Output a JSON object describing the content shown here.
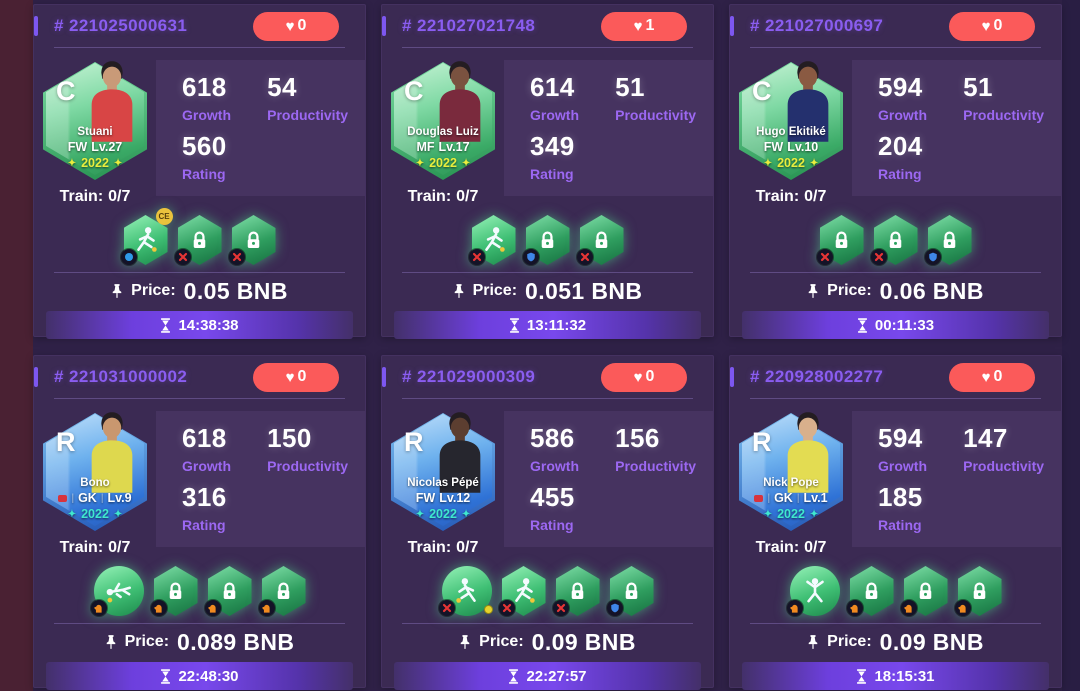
{
  "theme": {
    "accent_purple": "#8a5df0",
    "heart_red": "#fb5a5a",
    "timer_purple": "#6d3fdd",
    "skill_green": "#3fbf74",
    "common_green": "#3aaa66",
    "rare_blue": "#2f72d6"
  },
  "labels": {
    "train": "Train:",
    "growth": "Growth",
    "productivity": "Productivity",
    "rating": "Rating",
    "price": "Price:"
  },
  "cards": [
    {
      "id": "# 221025000631",
      "likes": "0",
      "player": {
        "grade": "C",
        "tier": "C",
        "name": "Stuani",
        "position": "FW",
        "level": "Lv.27",
        "year": "2022",
        "mark": false,
        "colors": {
          "jersey": "#d84545",
          "skin": "#c99a78"
        }
      },
      "growth": "618",
      "productivity": "54",
      "rating": "560",
      "train": "0/7",
      "price": "0.05 BNB",
      "timer": "14:38:38",
      "skills": [
        {
          "shape": "hex",
          "locked": false,
          "art": "kick",
          "badge": "dot",
          "top": "CE"
        },
        {
          "shape": "hex",
          "locked": true,
          "badge": "x"
        },
        {
          "shape": "hex",
          "locked": true,
          "badge": "x"
        }
      ]
    },
    {
      "id": "# 221027021748",
      "likes": "1",
      "player": {
        "grade": "C",
        "tier": "C",
        "name": "Douglas Luiz",
        "position": "MF",
        "level": "Lv.17",
        "year": "2022",
        "mark": false,
        "colors": {
          "jersey": "#7a2a3d",
          "skin": "#7a5240"
        }
      },
      "growth": "614",
      "productivity": "51",
      "rating": "349",
      "train": "0/7",
      "price": "0.051 BNB",
      "timer": "13:11:32",
      "skills": [
        {
          "shape": "hex",
          "locked": false,
          "art": "kick",
          "badge": "x"
        },
        {
          "shape": "hex",
          "locked": true,
          "badge": "shield"
        },
        {
          "shape": "hex",
          "locked": true,
          "badge": "x"
        }
      ]
    },
    {
      "id": "# 221027000697",
      "likes": "0",
      "player": {
        "grade": "C",
        "tier": "C",
        "name": "Hugo Ekitiké",
        "position": "FW",
        "level": "Lv.10",
        "year": "2022",
        "mark": false,
        "colors": {
          "jersey": "#24306e",
          "skin": "#8a5a42"
        }
      },
      "growth": "594",
      "productivity": "51",
      "rating": "204",
      "train": "0/7",
      "price": "0.06 BNB",
      "timer": "00:11:33",
      "skills": [
        {
          "shape": "hex",
          "locked": true,
          "badge": "x"
        },
        {
          "shape": "hex",
          "locked": true,
          "badge": "x"
        },
        {
          "shape": "hex",
          "locked": true,
          "badge": "shield"
        }
      ]
    },
    {
      "id": "# 221031000002",
      "likes": "0",
      "player": {
        "grade": "R",
        "tier": "R",
        "name": "Bono",
        "position": "GK",
        "level": "Lv.9",
        "year": "2022",
        "mark": true,
        "colors": {
          "jersey": "#ded84e",
          "skin": "#c9976f"
        }
      },
      "growth": "618",
      "productivity": "150",
      "rating": "316",
      "train": "0/7",
      "price": "0.089 BNB",
      "timer": "22:48:30",
      "skills": [
        {
          "shape": "circle",
          "locked": false,
          "art": "dive",
          "badge": "glove"
        },
        {
          "shape": "hex",
          "locked": true,
          "badge": "glove"
        },
        {
          "shape": "hex",
          "locked": true,
          "badge": "glove"
        },
        {
          "shape": "hex",
          "locked": true,
          "badge": "glove"
        }
      ]
    },
    {
      "id": "# 221029000309",
      "likes": "0",
      "player": {
        "grade": "R",
        "tier": "R",
        "name": "Nicolas Pépé",
        "position": "FW",
        "level": "Lv.12",
        "year": "2022",
        "mark": false,
        "colors": {
          "jersey": "#26262e",
          "skin": "#5c3e30"
        }
      },
      "growth": "586",
      "productivity": "156",
      "rating": "455",
      "train": "0/7",
      "price": "0.09 BNB",
      "timer": "22:27:57",
      "skills": [
        {
          "shape": "circle",
          "locked": false,
          "art": "tackle",
          "badge": "x",
          "ball": true
        },
        {
          "shape": "hex",
          "locked": false,
          "art": "kick",
          "badge": "x"
        },
        {
          "shape": "hex",
          "locked": true,
          "badge": "x"
        },
        {
          "shape": "hex",
          "locked": true,
          "badge": "shield"
        }
      ]
    },
    {
      "id": "# 220928002277",
      "likes": "0",
      "player": {
        "grade": "R",
        "tier": "R",
        "name": "Nick Pope",
        "position": "GK",
        "level": "Lv.1",
        "year": "2022",
        "mark": true,
        "colors": {
          "jersey": "#e3dc52",
          "skin": "#d9b08c"
        }
      },
      "growth": "594",
      "productivity": "147",
      "rating": "185",
      "train": "0/7",
      "price": "0.09 BNB",
      "timer": "18:15:31",
      "skills": [
        {
          "shape": "circle",
          "locked": false,
          "art": "catch",
          "badge": "glove"
        },
        {
          "shape": "hex",
          "locked": true,
          "badge": "glove"
        },
        {
          "shape": "hex",
          "locked": true,
          "badge": "glove"
        },
        {
          "shape": "hex",
          "locked": true,
          "badge": "glove"
        }
      ]
    }
  ]
}
